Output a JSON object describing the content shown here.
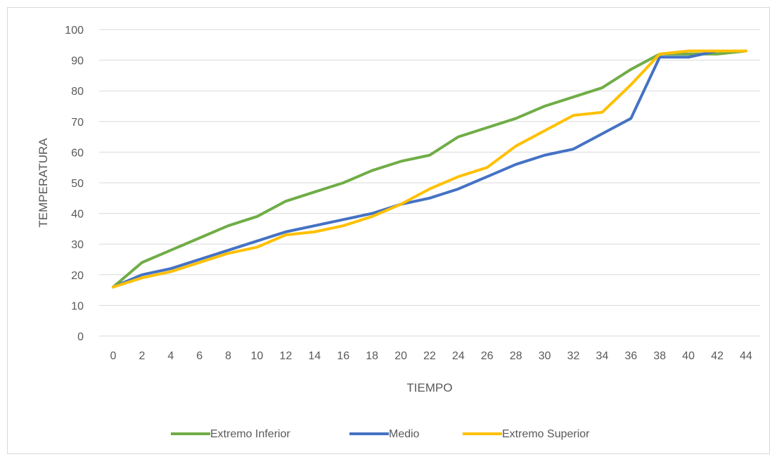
{
  "chart_data": {
    "type": "line",
    "title": "",
    "xlabel": "TIEMPO",
    "ylabel": "TEMPERATURA",
    "x": [
      0,
      2,
      4,
      6,
      8,
      10,
      12,
      14,
      16,
      18,
      20,
      22,
      24,
      26,
      28,
      30,
      32,
      34,
      36,
      38,
      40,
      42,
      44
    ],
    "ylim": [
      0,
      100
    ],
    "yticks": [
      0,
      10,
      20,
      30,
      40,
      50,
      60,
      70,
      80,
      90,
      100
    ],
    "grid": true,
    "legend_position": "bottom",
    "series": [
      {
        "name": "Extremo Inferior",
        "color": "#70ad47",
        "values": [
          16,
          24,
          28,
          32,
          36,
          39,
          44,
          47,
          50,
          54,
          57,
          59,
          65,
          68,
          71,
          75,
          78,
          81,
          87,
          92,
          92,
          92,
          93
        ]
      },
      {
        "name": "Medio",
        "color": "#4472c4",
        "values": [
          16,
          20,
          22,
          25,
          28,
          31,
          34,
          36,
          38,
          40,
          43,
          45,
          48,
          52,
          56,
          59,
          61,
          66,
          71,
          91,
          91,
          93,
          93
        ]
      },
      {
        "name": "Extremo Superior",
        "color": "#ffc000",
        "values": [
          16,
          19,
          21,
          24,
          27,
          29,
          33,
          34,
          36,
          39,
          43,
          48,
          52,
          55,
          62,
          67,
          72,
          73,
          82,
          92,
          93,
          93,
          93
        ]
      }
    ]
  }
}
